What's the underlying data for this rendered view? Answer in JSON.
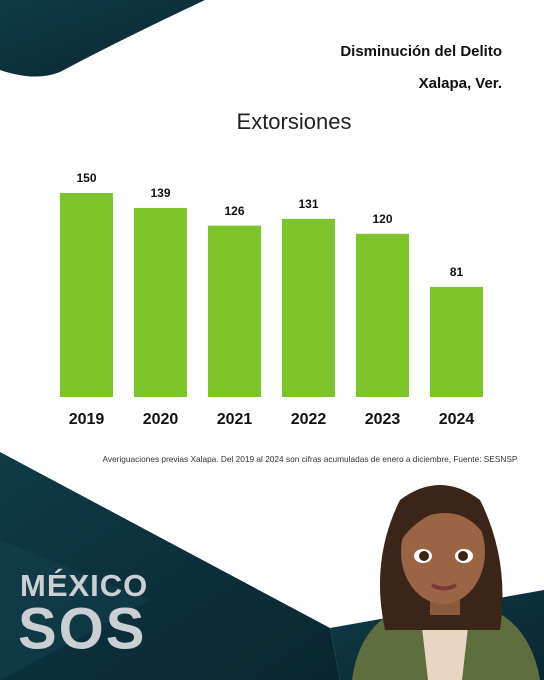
{
  "header": {
    "line1": "Disminución del Delito",
    "line2": "Xalapa, Ver."
  },
  "chart_data": {
    "type": "bar",
    "title": "Extorsiones",
    "categories": [
      "2019",
      "2020",
      "2021",
      "2022",
      "2023",
      "2024"
    ],
    "values": [
      150,
      139,
      126,
      131,
      120,
      81
    ],
    "color": "#7dc42b"
  },
  "footnote": "Averiguaciones previas Xalapa. Del 2019 al 2024 son cifras acumuladas de enero a diciembre, Fuente: SESNSP",
  "logo": {
    "line1": "MÉXICO",
    "line2": "SOS"
  }
}
